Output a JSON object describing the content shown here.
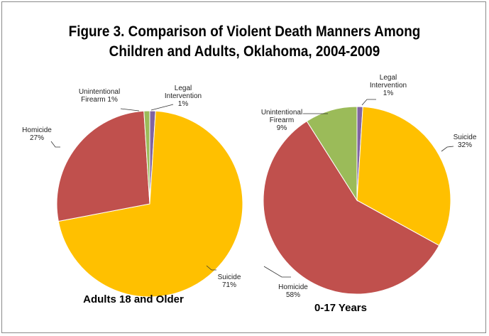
{
  "title": {
    "line1": "Figure 3. Comparison of Violent Death Manners Among",
    "line2": "Children and Adults, Oklahoma, 2004-2009"
  },
  "colors": {
    "suicide": "#FFC000",
    "homicide": "#C0504D",
    "unintentional_firearm": "#9BBB59",
    "legal_intervention": "#8064A2"
  },
  "chart_data": [
    {
      "type": "pie",
      "title": "Adults 18 and Older",
      "slices": [
        {
          "key": "suicide",
          "value": 71,
          "label_lines": [
            "Suicide",
            "71%"
          ]
        },
        {
          "key": "homicide",
          "value": 27,
          "label_lines": [
            "Homicide",
            "27%"
          ]
        },
        {
          "key": "unintentional_firearm",
          "value": 1,
          "label_lines": [
            "Unintentional",
            "Firearm 1%"
          ]
        },
        {
          "key": "legal_intervention",
          "value": 1,
          "label_lines": [
            "Legal",
            "Intervention",
            "1%"
          ]
        }
      ]
    },
    {
      "type": "pie",
      "title": "0-17 Years",
      "slices": [
        {
          "key": "suicide",
          "value": 32,
          "label_lines": [
            "Suicide",
            "32%"
          ]
        },
        {
          "key": "homicide",
          "value": 58,
          "label_lines": [
            "Homicide",
            "58%"
          ]
        },
        {
          "key": "unintentional_firearm",
          "value": 9,
          "label_lines": [
            "Unintentional",
            "Firearm",
            "9%"
          ]
        },
        {
          "key": "legal_intervention",
          "value": 1,
          "label_lines": [
            "Legal",
            "Intervention",
            "1%"
          ]
        }
      ]
    }
  ]
}
